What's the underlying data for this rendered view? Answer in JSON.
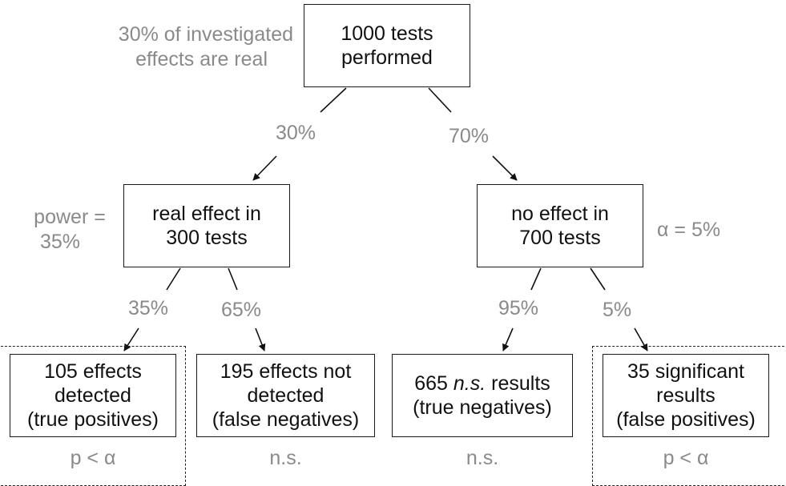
{
  "annotations": {
    "prevalence_line1": "30% of investigated",
    "prevalence_line2": "effects are real",
    "power_line1": "power =",
    "power_line2": "35%",
    "alpha": "α = 5%"
  },
  "nodes": {
    "root": {
      "line1": "1000 tests",
      "line2": "performed"
    },
    "real": {
      "line1": "real effect in",
      "line2": "300 tests"
    },
    "no_effect": {
      "line1": "no effect in",
      "line2": "700 tests"
    },
    "true_positives": {
      "line1": "105 effects",
      "line2": "detected",
      "line3": "(true positives)"
    },
    "false_negatives": {
      "line1": "195 effects not",
      "line2": "detected",
      "line3": "(false negatives)"
    },
    "true_negatives": {
      "line1_num": "665",
      "line1_italic": "n.s.",
      "line1_rest": "results",
      "line2": "(true negatives)"
    },
    "false_positives": {
      "line1": "35 significant",
      "line2": "results",
      "line3": "(false positives)"
    }
  },
  "edges": {
    "root_to_real": "30%",
    "root_to_no_effect": "70%",
    "real_to_tp": "35%",
    "real_to_fn": "65%",
    "no_to_tn": "95%",
    "no_to_fp": "5%"
  },
  "outcomes": {
    "tp": "p < α",
    "fn": "n.s.",
    "tn": "n.s.",
    "fp": "p < α"
  }
}
